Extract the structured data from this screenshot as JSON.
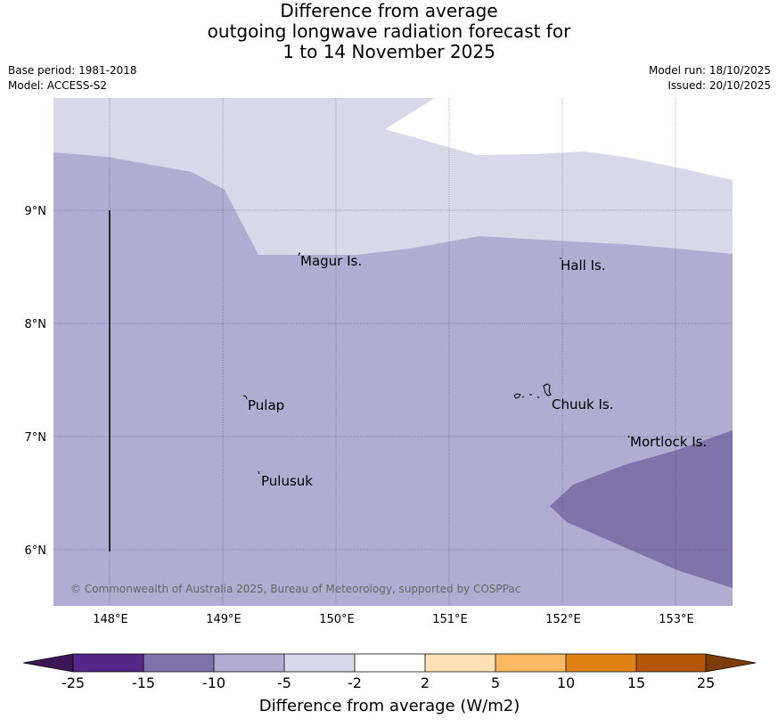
{
  "title": {
    "line1": "Difference from average",
    "line2": "outgoing longwave radiation forecast for",
    "line3": "1 to 14 November 2025"
  },
  "meta_left": {
    "base_period": "Base period: 1981-2018",
    "model": "Model: ACCESS-S2"
  },
  "meta_right": {
    "model_run": "Model run: 18/10/2025",
    "issued": "Issued: 20/10/2025"
  },
  "map": {
    "lat_labels": [
      "9°N",
      "8°N",
      "7°N",
      "6°N"
    ],
    "lon_labels": [
      "148°E",
      "149°E",
      "150°E",
      "151°E",
      "152°E",
      "153°E"
    ],
    "places": [
      "Magur Is.",
      "Hall Is.",
      "Pulap",
      "Chuuk Is.",
      "Mortlock Is.",
      "Pulusuk"
    ],
    "copyright": "© Commonwealth of Australia 2025, Bureau of Meteorology, supported by COSPPac",
    "colors": {
      "band_minus5_minus2": "#d8d8ea",
      "band_minus10_minus5": "#b1acd2",
      "band_minus15_minus10": "#8073ac",
      "no_change": "#ffffff"
    }
  },
  "colorbar": {
    "title": "Difference from average (W/m2)",
    "ticks": [
      "-25",
      "-15",
      "-10",
      "-5",
      "-2",
      "2",
      "5",
      "10",
      "15",
      "25"
    ],
    "colors": [
      "#3d1656",
      "#542788",
      "#8073ac",
      "#b2abd2",
      "#d8daeb",
      "#ffffff",
      "#fee0b6",
      "#fdb863",
      "#e08214",
      "#b35806",
      "#7f3b08"
    ]
  }
}
